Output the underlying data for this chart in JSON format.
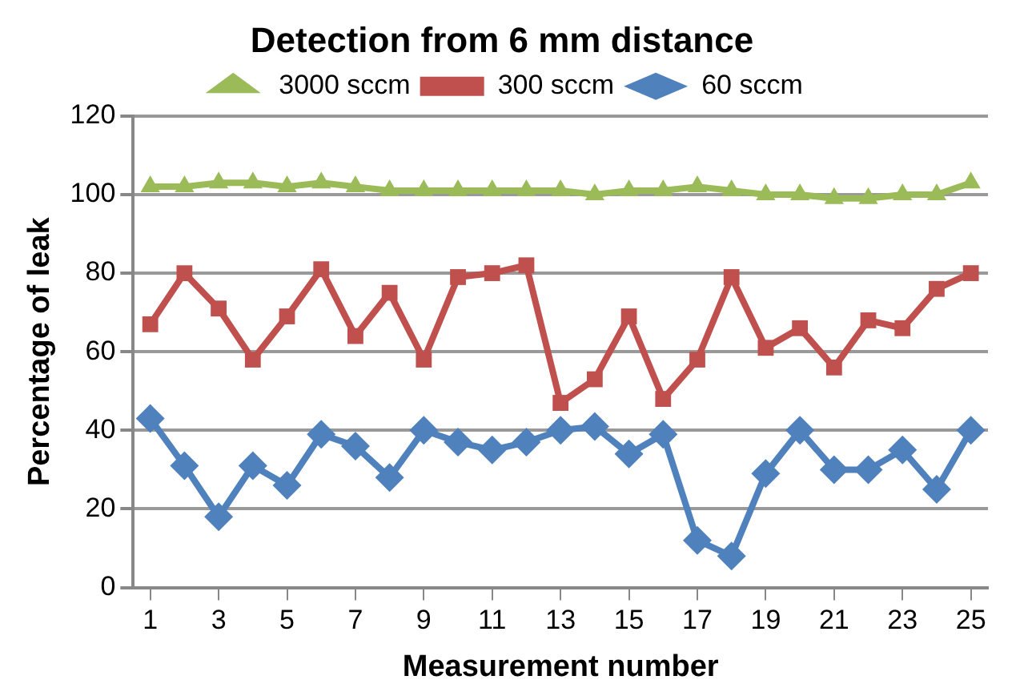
{
  "chart_data": {
    "type": "line",
    "title": "Detection from 6 mm distance",
    "xlabel": "Measurement number",
    "ylabel": "Percentage of leak",
    "x": [
      1,
      2,
      3,
      4,
      5,
      6,
      7,
      8,
      9,
      10,
      11,
      12,
      13,
      14,
      15,
      16,
      17,
      18,
      19,
      20,
      21,
      22,
      23,
      24,
      25
    ],
    "xlim": [
      0.5,
      25.5
    ],
    "xticks": [
      1,
      3,
      5,
      7,
      9,
      11,
      13,
      15,
      17,
      19,
      21,
      23,
      25
    ],
    "series": [
      {
        "name": "3000 sccm",
        "color": "#9bbb59",
        "marker": "triangle",
        "values": [
          102,
          102,
          103,
          103,
          102,
          103,
          102,
          101,
          101,
          101,
          101,
          101,
          101,
          100,
          101,
          101,
          102,
          101,
          100,
          100,
          99,
          99,
          100,
          100,
          103
        ]
      },
      {
        "name": "300 sccm",
        "color": "#c0504d",
        "marker": "square",
        "values": [
          67,
          80,
          71,
          58,
          69,
          81,
          64,
          75,
          58,
          79,
          80,
          82,
          47,
          53,
          69,
          48,
          58,
          79,
          61,
          66,
          56,
          68,
          66,
          76,
          80
        ]
      },
      {
        "name": "60 sccm",
        "color": "#4f81bd",
        "marker": "diamond",
        "values": [
          43,
          31,
          18,
          31,
          26,
          39,
          36,
          28,
          40,
          37,
          35,
          37,
          40,
          41,
          34,
          39,
          12,
          8,
          29,
          40,
          30,
          30,
          35,
          25,
          40
        ]
      }
    ],
    "ylim": [
      0,
      120
    ],
    "yticks": [
      0,
      20,
      40,
      60,
      80,
      100,
      120
    ],
    "grid": "y",
    "legend": "top"
  }
}
